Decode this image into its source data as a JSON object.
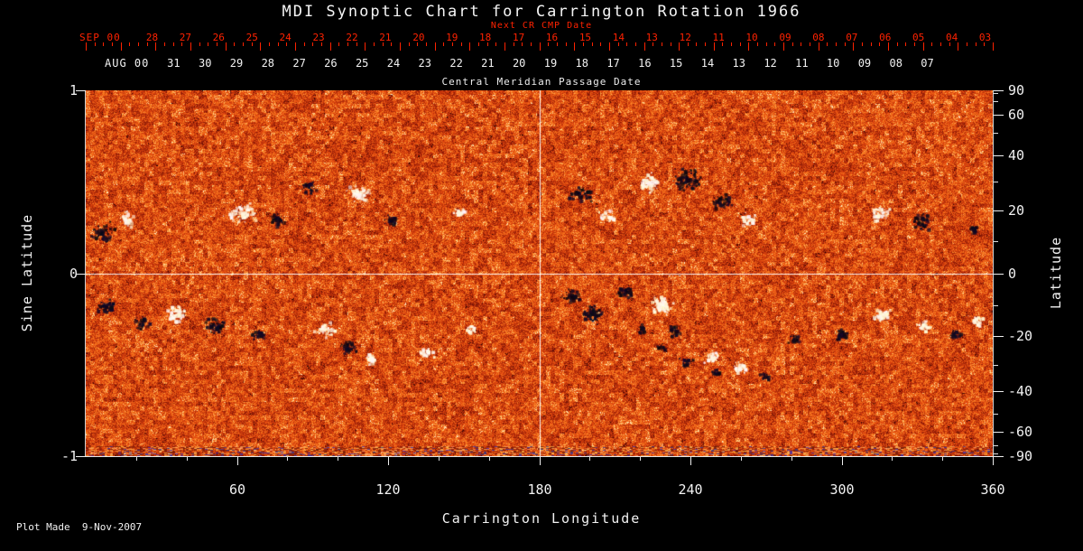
{
  "title": "MDI Synoptic Chart for Carrington Rotation 1966",
  "footer": "Plot Made  9-Nov-2007",
  "top_axis": {
    "red_label": "Next CR CMP Date",
    "red_prefix": "SEP 00",
    "red_days": [
      "28",
      "27",
      "26",
      "25",
      "24",
      "23",
      "22",
      "21",
      "20",
      "19",
      "18",
      "17",
      "16",
      "15",
      "14",
      "13",
      "12",
      "11",
      "10",
      "09",
      "08",
      "07",
      "06",
      "05",
      "04",
      "03"
    ],
    "white_prefix": "AUG 00",
    "white_days": [
      "31",
      "30",
      "29",
      "28",
      "27",
      "26",
      "25",
      "24",
      "23",
      "22",
      "21",
      "20",
      "19",
      "18",
      "17",
      "16",
      "15",
      "14",
      "13",
      "12",
      "11",
      "10",
      "09",
      "08",
      "07"
    ],
    "white_label": "Central Meridian Passage Date"
  },
  "colors": {
    "background": "#000000",
    "accent_red": "#ff2200",
    "text": "#f2f2f2",
    "base_orange": "#d94510",
    "field_positive": "#fff8e0",
    "field_negative": "#0d0816",
    "crosshair": "#ffffff"
  },
  "chart_data": {
    "type": "heatmap",
    "title": "MDI Synoptic Chart for Carrington Rotation 1966",
    "xlabel": "Carrington Longitude",
    "ylabel_left": "Sine Latitude",
    "ylabel_right": "Latitude",
    "xlim": [
      0,
      360
    ],
    "ylim": [
      -1,
      1
    ],
    "x_ticks": [
      60,
      120,
      180,
      240,
      300,
      360
    ],
    "x_minor_ticks": [
      20,
      40,
      80,
      100,
      140,
      160,
      200,
      220,
      260,
      280,
      320,
      340
    ],
    "left_ticks": [
      1,
      0,
      -1
    ],
    "right_ticks": [
      90,
      60,
      40,
      20,
      0,
      -20,
      -40,
      -60,
      -90
    ],
    "right_minor_ticks": [
      80,
      70,
      50,
      30,
      10,
      -10,
      -30,
      -50,
      -70,
      -80
    ],
    "crosshair": {
      "lon": 180,
      "sine_lat": 0
    },
    "description": "Full-surface solar photospheric magnetogram: orange speckle = weak mixed field, white clusters = positive polarity active regions, black clusters = negative polarity active regions; striped instrument-noise band along the bottom edge; white reference lines at longitude 180 and sine latitude 0.",
    "active_regions": [
      {
        "lon": 6,
        "sine_lat": 0.22,
        "sx": 16,
        "sy": 14,
        "polarity": -1,
        "spots": 55
      },
      {
        "lon": 16,
        "sine_lat": 0.3,
        "sx": 12,
        "sy": 10,
        "polarity": 1,
        "spots": 35
      },
      {
        "lon": 62,
        "sine_lat": 0.33,
        "sx": 24,
        "sy": 13,
        "polarity": 1,
        "spots": 70
      },
      {
        "lon": 76,
        "sine_lat": 0.3,
        "sx": 11,
        "sy": 9,
        "polarity": -1,
        "spots": 40
      },
      {
        "lon": 88,
        "sine_lat": 0.47,
        "sx": 13,
        "sy": 9,
        "polarity": -1,
        "spots": 35
      },
      {
        "lon": 108,
        "sine_lat": 0.44,
        "sx": 17,
        "sy": 11,
        "polarity": 1,
        "spots": 60
      },
      {
        "lon": 121,
        "sine_lat": 0.3,
        "sx": 9,
        "sy": 7,
        "polarity": -1,
        "spots": 25
      },
      {
        "lon": 148,
        "sine_lat": 0.34,
        "sx": 11,
        "sy": 7,
        "polarity": 1,
        "spots": 25
      },
      {
        "lon": 196,
        "sine_lat": 0.44,
        "sx": 15,
        "sy": 11,
        "polarity": -1,
        "spots": 45
      },
      {
        "lon": 206,
        "sine_lat": 0.32,
        "sx": 13,
        "sy": 9,
        "polarity": 1,
        "spots": 40
      },
      {
        "lon": 223,
        "sine_lat": 0.5,
        "sx": 17,
        "sy": 13,
        "polarity": 1,
        "spots": 65
      },
      {
        "lon": 238,
        "sine_lat": 0.52,
        "sx": 21,
        "sy": 15,
        "polarity": -1,
        "spots": 90
      },
      {
        "lon": 252,
        "sine_lat": 0.4,
        "sx": 15,
        "sy": 11,
        "polarity": -1,
        "spots": 45
      },
      {
        "lon": 263,
        "sine_lat": 0.3,
        "sx": 11,
        "sy": 9,
        "polarity": 1,
        "spots": 30
      },
      {
        "lon": 315,
        "sine_lat": 0.33,
        "sx": 15,
        "sy": 11,
        "polarity": 1,
        "spots": 50
      },
      {
        "lon": 331,
        "sine_lat": 0.29,
        "sx": 13,
        "sy": 11,
        "polarity": -1,
        "spots": 45
      },
      {
        "lon": 352,
        "sine_lat": 0.24,
        "sx": 9,
        "sy": 7,
        "polarity": -1,
        "spots": 22
      },
      {
        "lon": 8,
        "sine_lat": -0.18,
        "sx": 14,
        "sy": 11,
        "polarity": -1,
        "spots": 45
      },
      {
        "lon": 22,
        "sine_lat": -0.26,
        "sx": 11,
        "sy": 9,
        "polarity": -1,
        "spots": 30
      },
      {
        "lon": 36,
        "sine_lat": -0.22,
        "sx": 13,
        "sy": 11,
        "polarity": 1,
        "spots": 50
      },
      {
        "lon": 51,
        "sine_lat": -0.28,
        "sx": 15,
        "sy": 11,
        "polarity": -1,
        "spots": 50
      },
      {
        "lon": 68,
        "sine_lat": -0.33,
        "sx": 11,
        "sy": 7,
        "polarity": -1,
        "spots": 25
      },
      {
        "lon": 95,
        "sine_lat": -0.3,
        "sx": 15,
        "sy": 11,
        "polarity": 1,
        "spots": 45
      },
      {
        "lon": 104,
        "sine_lat": -0.4,
        "sx": 11,
        "sy": 9,
        "polarity": -1,
        "spots": 35
      },
      {
        "lon": 113,
        "sine_lat": -0.46,
        "sx": 9,
        "sy": 7,
        "polarity": 1,
        "spots": 28
      },
      {
        "lon": 135,
        "sine_lat": -0.43,
        "sx": 11,
        "sy": 7,
        "polarity": 1,
        "spots": 28
      },
      {
        "lon": 152,
        "sine_lat": -0.3,
        "sx": 9,
        "sy": 6,
        "polarity": 1,
        "spots": 18
      },
      {
        "lon": 192,
        "sine_lat": -0.12,
        "sx": 13,
        "sy": 9,
        "polarity": -1,
        "spots": 40
      },
      {
        "lon": 201,
        "sine_lat": -0.22,
        "sx": 15,
        "sy": 13,
        "polarity": -1,
        "spots": 55
      },
      {
        "lon": 213,
        "sine_lat": -0.1,
        "sx": 13,
        "sy": 9,
        "polarity": -1,
        "spots": 40
      },
      {
        "lon": 228,
        "sine_lat": -0.17,
        "sx": 15,
        "sy": 13,
        "polarity": 1,
        "spots": 85
      },
      {
        "lon": 233,
        "sine_lat": -0.31,
        "sx": 9,
        "sy": 8,
        "polarity": -1,
        "spots": 28
      },
      {
        "lon": 220,
        "sine_lat": -0.3,
        "sx": 7,
        "sy": 7,
        "polarity": -1,
        "spots": 18
      },
      {
        "lon": 228,
        "sine_lat": -0.4,
        "sx": 7,
        "sy": 7,
        "polarity": -1,
        "spots": 18
      },
      {
        "lon": 238,
        "sine_lat": -0.48,
        "sx": 9,
        "sy": 7,
        "polarity": -1,
        "spots": 22
      },
      {
        "lon": 250,
        "sine_lat": -0.54,
        "sx": 9,
        "sy": 6,
        "polarity": -1,
        "spots": 18
      },
      {
        "lon": 248,
        "sine_lat": -0.45,
        "sx": 11,
        "sy": 9,
        "polarity": 1,
        "spots": 38
      },
      {
        "lon": 259,
        "sine_lat": -0.51,
        "sx": 11,
        "sy": 9,
        "polarity": 1,
        "spots": 32
      },
      {
        "lon": 269,
        "sine_lat": -0.56,
        "sx": 9,
        "sy": 7,
        "polarity": -1,
        "spots": 22
      },
      {
        "lon": 281,
        "sine_lat": -0.36,
        "sx": 9,
        "sy": 7,
        "polarity": -1,
        "spots": 22
      },
      {
        "lon": 300,
        "sine_lat": -0.33,
        "sx": 11,
        "sy": 9,
        "polarity": -1,
        "spots": 32
      },
      {
        "lon": 316,
        "sine_lat": -0.22,
        "sx": 13,
        "sy": 9,
        "polarity": 1,
        "spots": 42
      },
      {
        "lon": 332,
        "sine_lat": -0.28,
        "sx": 11,
        "sy": 9,
        "polarity": 1,
        "spots": 32
      },
      {
        "lon": 345,
        "sine_lat": -0.33,
        "sx": 9,
        "sy": 7,
        "polarity": -1,
        "spots": 22
      },
      {
        "lon": 353,
        "sine_lat": -0.25,
        "sx": 9,
        "sy": 7,
        "polarity": 1,
        "spots": 22
      }
    ]
  }
}
